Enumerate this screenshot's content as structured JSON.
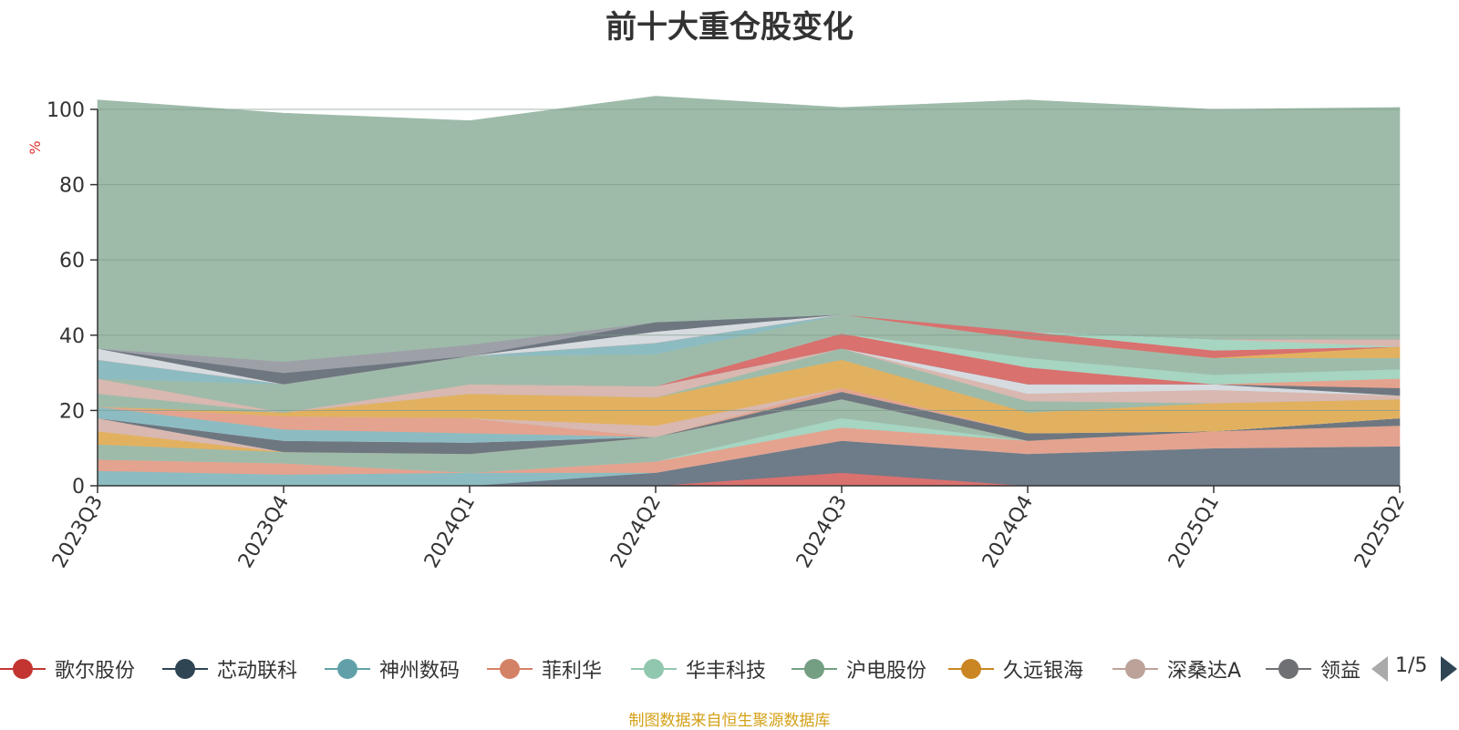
{
  "chart_data": {
    "type": "area",
    "title": "前十大重仓股变化",
    "ylabel": "%",
    "ylim": [
      0,
      100
    ],
    "yticks": [
      0,
      20,
      40,
      60,
      80,
      100
    ],
    "grid": true,
    "stacked": true,
    "x": [
      "2023Q3",
      "2023Q4",
      "2024Q1",
      "2024Q2",
      "2024Q3",
      "2024Q4",
      "2025Q1",
      "2025Q2"
    ],
    "series": [
      {
        "name": "歌尔股份",
        "color": "#d9716f",
        "values": [
          0,
          0,
          0,
          0,
          3.5,
          0,
          0,
          0
        ]
      },
      {
        "name": "芯动联科",
        "color": "#6e7b89",
        "values": [
          0,
          0,
          0,
          3.5,
          8.5,
          8.5,
          10,
          10.5
        ]
      },
      {
        "name": "神州数码",
        "color": "#8cbcc2",
        "values": [
          4,
          3,
          3.5,
          0,
          0,
          0,
          0,
          0
        ]
      },
      {
        "name": "菲利华",
        "color": "#e4a38f",
        "values": [
          3,
          3,
          0,
          3,
          3.5,
          3.5,
          4.5,
          5.5
        ]
      },
      {
        "name": "华丰科技",
        "color": "#a6d5c2",
        "values": [
          0,
          0,
          0,
          0,
          2.5,
          0,
          0,
          0
        ]
      },
      {
        "name": "沪电股份",
        "color": "#9ebbaa",
        "values": [
          4,
          3,
          5,
          6.5,
          5,
          0,
          0,
          0
        ]
      },
      {
        "name": "久远银海",
        "color": "#e2b160",
        "values": [
          3.5,
          0,
          0,
          0,
          0,
          0,
          0,
          0
        ]
      },
      {
        "name": "深桑达A",
        "color": "#d8b8b0",
        "values": [
          3.5,
          0,
          0,
          0,
          0,
          0,
          0,
          0
        ]
      },
      {
        "name": "领益智造",
        "color": "#6e7780",
        "values": [
          0,
          3,
          3,
          0,
          2,
          2,
          0,
          2
        ]
      },
      {
        "name": "",
        "color": "#d6dbe0",
        "values": [
          0,
          0,
          0,
          0,
          0,
          0,
          0,
          0
        ]
      },
      {
        "name": "",
        "color": "#8cbcc2",
        "values": [
          3,
          3,
          2.5,
          0,
          0,
          0,
          0,
          0
        ]
      },
      {
        "name": "",
        "color": "#e4a38f",
        "values": [
          0,
          3.5,
          4,
          0,
          1,
          0,
          0,
          0
        ]
      },
      {
        "name": "",
        "color": "#a6d5c2",
        "values": [
          0,
          0,
          0,
          0,
          0,
          0,
          0,
          0
        ]
      },
      {
        "name": "",
        "color": "#d8b8b0",
        "values": [
          0,
          0,
          0,
          3,
          0,
          0,
          0,
          0
        ]
      },
      {
        "name": "",
        "color": "#e2b160",
        "values": [
          0,
          1,
          6.5,
          7.5,
          7.5,
          5.5,
          7.5,
          5
        ]
      },
      {
        "name": "",
        "color": "#9ebbaa",
        "values": [
          3.5,
          0,
          0,
          0,
          3,
          3,
          0,
          0
        ]
      },
      {
        "name": "",
        "color": "#d8b8b0",
        "values": [
          4,
          0,
          2.5,
          3,
          0,
          2,
          3.5,
          1
        ]
      },
      {
        "name": "",
        "color": "#d6dbe0",
        "values": [
          0,
          0,
          0,
          0,
          0,
          2.5,
          1.5,
          0
        ]
      },
      {
        "name": "",
        "color": "#6e7780",
        "values": [
          0,
          0,
          0,
          0,
          0,
          0,
          0,
          2
        ]
      },
      {
        "name": "",
        "color": "#d9716f",
        "values": [
          0,
          0,
          0,
          0,
          4,
          4.5,
          0,
          0
        ]
      },
      {
        "name": "",
        "color": "#e4a38f",
        "values": [
          0,
          0,
          0,
          0,
          0,
          0,
          0,
          2.5
        ]
      },
      {
        "name": "",
        "color": "#a6d5c2",
        "values": [
          0,
          0,
          0,
          0,
          0,
          2.5,
          2.5,
          2.5
        ]
      },
      {
        "name": "",
        "color": "#9ebbaa",
        "values": [
          0,
          7.5,
          7.5,
          8.5,
          5,
          5,
          4.5,
          3
        ]
      },
      {
        "name": "",
        "color": "#8cbcc2",
        "values": [
          5,
          0,
          0,
          3,
          0,
          0,
          0,
          0
        ]
      },
      {
        "name": "",
        "color": "#e2b160",
        "values": [
          0,
          0,
          0,
          0,
          0,
          0,
          0,
          3
        ]
      },
      {
        "name": "",
        "color": "#d9716f",
        "values": [
          0,
          0,
          0,
          0,
          0,
          2,
          2,
          0
        ]
      },
      {
        "name": "",
        "color": "#d6dbe0",
        "values": [
          3,
          0,
          0,
          3,
          0,
          0,
          0,
          0
        ]
      },
      {
        "name": "",
        "color": "#a6d5c2",
        "values": [
          0,
          0,
          0,
          0,
          0,
          0,
          3,
          0
        ]
      },
      {
        "name": "",
        "color": "#d8b8b0",
        "values": [
          0,
          0,
          0,
          0,
          0,
          0,
          0,
          2
        ]
      },
      {
        "name": "",
        "color": "#6e7780",
        "values": [
          0,
          3,
          0,
          2.5,
          0,
          0,
          0,
          0
        ]
      },
      {
        "name": "",
        "color": "#9ea0a8",
        "values": [
          0,
          3,
          3,
          0,
          0,
          0,
          0,
          0
        ]
      },
      {
        "name": "",
        "color": "#9ebbaa",
        "values": [
          66,
          66,
          59.5,
          60,
          55,
          61.5,
          61,
          61.5
        ]
      }
    ]
  },
  "legend": {
    "items": [
      {
        "label": "歌尔股份",
        "color": "#c23531"
      },
      {
        "label": "芯动联科",
        "color": "#2f4554"
      },
      {
        "label": "神州数码",
        "color": "#61a0a8"
      },
      {
        "label": "菲利华",
        "color": "#d48265"
      },
      {
        "label": "华丰科技",
        "color": "#91c7ae"
      },
      {
        "label": "沪电股份",
        "color": "#749f83"
      },
      {
        "label": "久远银海",
        "color": "#ca8622"
      },
      {
        "label": "深桑达A",
        "color": "#bda29a"
      },
      {
        "label": "领益",
        "color": "#6e7074"
      }
    ],
    "page": "1/5"
  },
  "footer": "制图数据来自恒生聚源数据库"
}
